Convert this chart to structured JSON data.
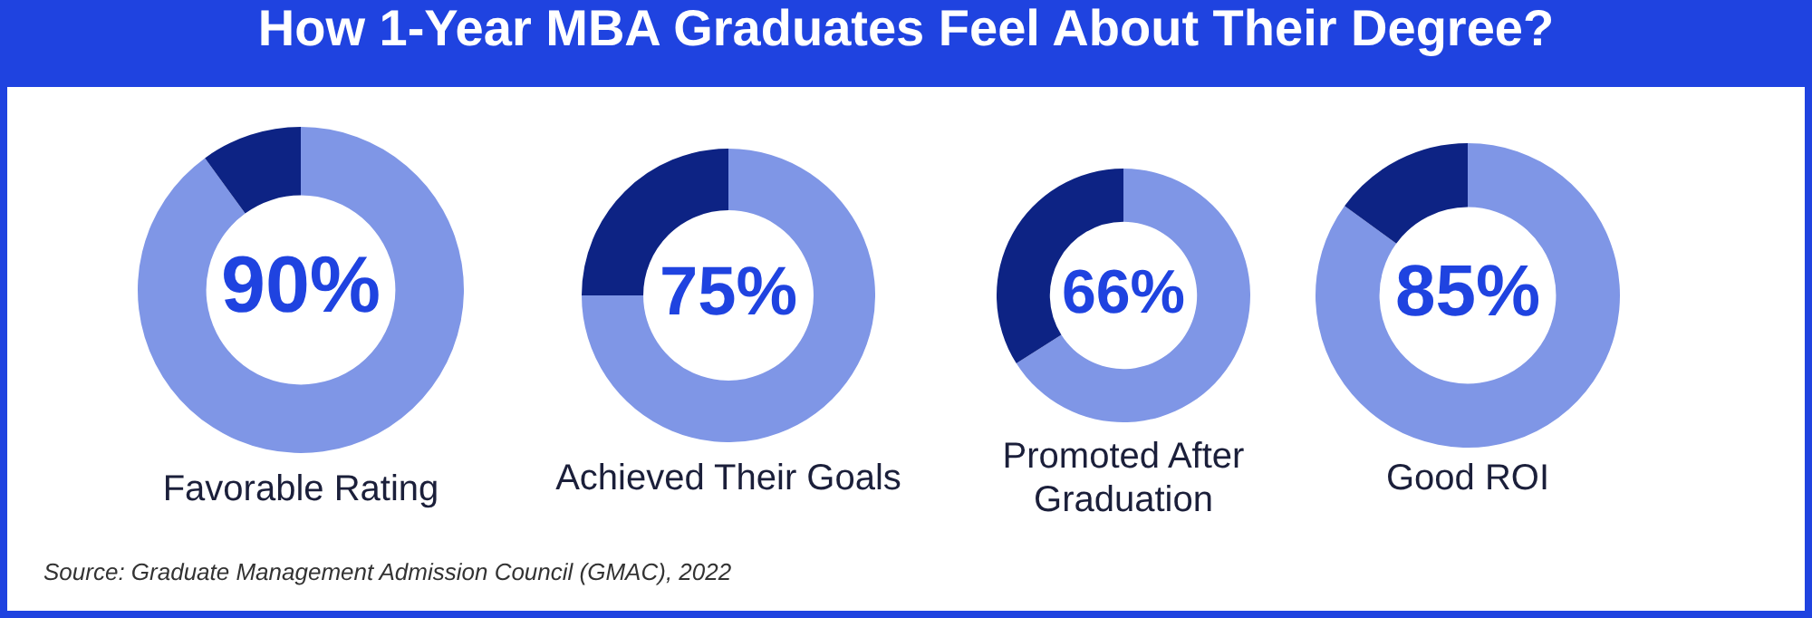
{
  "chart_data": [
    {
      "type": "donut",
      "title": "How 1-Year MBA Graduates Feel About Their Degree?",
      "xlabel": "Favorable Rating",
      "categories": [
        null,
        null
      ],
      "values": [
        90,
        10
      ],
      "colors": [
        "#7f96e6",
        "#0d2384"
      ],
      "value_labels": [
        "90%",
        null
      ],
      "annotations": [
        "Source: Graduate Management Admission Council (GMAC), 2022"
      ]
    },
    {
      "type": "donut",
      "xlabel": "Achieved Their Goals",
      "categories": [
        null,
        null
      ],
      "values": [
        75,
        25
      ],
      "colors": [
        "#7f96e6",
        "#0d2384"
      ],
      "value_labels": [
        "75%",
        null
      ]
    },
    {
      "type": "donut",
      "xlabel": "Promoted After Graduation",
      "categories": [
        null,
        null
      ],
      "values": [
        66,
        34
      ],
      "colors": [
        "#7f96e6",
        "#0d2384"
      ],
      "value_labels": [
        "66%",
        null
      ]
    },
    {
      "type": "donut",
      "xlabel": "Good ROI",
      "categories": [
        null,
        null
      ],
      "values": [
        85,
        15
      ],
      "colors": [
        "#7f96e6",
        "#0d2384"
      ],
      "value_labels": [
        "85%",
        null
      ]
    }
  ]
}
